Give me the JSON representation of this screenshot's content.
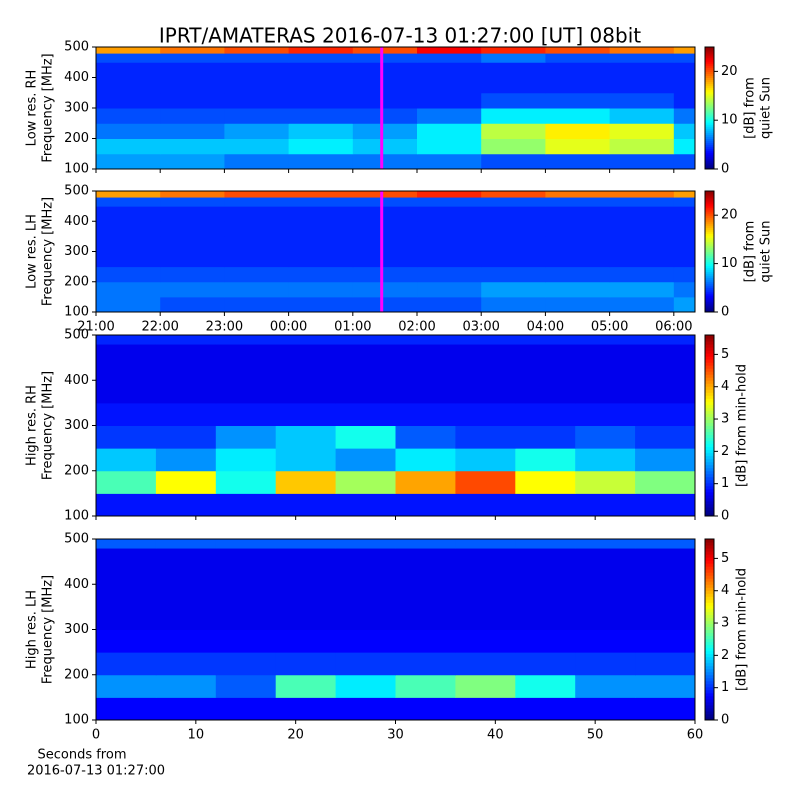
{
  "chart_data": [
    {
      "type": "heatmap",
      "title": "IPRT/AMATERAS 2016-07-13 01:27:00 [UT]   08bit",
      "ylabel": [
        "Low res. RH",
        "Frequency [MHz]"
      ],
      "xlim": [
        21,
        30.33
      ],
      "xticks": [
        21,
        22,
        23,
        24,
        25,
        26,
        27,
        28,
        29,
        30
      ],
      "ylim": [
        100,
        500
      ],
      "yticks": [
        100,
        200,
        300,
        400,
        500
      ],
      "x_edges": [
        21,
        22,
        23,
        24,
        25,
        26,
        27,
        28,
        29,
        30,
        30.33
      ],
      "y_edges": [
        100,
        150,
        200,
        250,
        300,
        350,
        400,
        450,
        480,
        500
      ],
      "colormap": "jet",
      "marker_x": 25.45,
      "marker_color": "#ff00ff",
      "z": [
        [
          7,
          7,
          6,
          6,
          6,
          6,
          5,
          5,
          5,
          5
        ],
        [
          8,
          8,
          8,
          9,
          8,
          9,
          13,
          15,
          14,
          9
        ],
        [
          6,
          6,
          7,
          8,
          7,
          9,
          14,
          16,
          15,
          8
        ],
        [
          5,
          5,
          5,
          5,
          5,
          6,
          9,
          9,
          8,
          6
        ],
        [
          4,
          4,
          4,
          4,
          4,
          4,
          5,
          5,
          5,
          4
        ],
        [
          4,
          4,
          4,
          4,
          4,
          4,
          4,
          4,
          4,
          4
        ],
        [
          4,
          4,
          4,
          4,
          4,
          4,
          4,
          4,
          4,
          4
        ],
        [
          5,
          5,
          5,
          5,
          5,
          5,
          6,
          5,
          5,
          5
        ],
        [
          18,
          19,
          20,
          21,
          20,
          22,
          21,
          20,
          19,
          18
        ]
      ],
      "colorbar": {
        "label": [
          "[dB] from",
          "quiet Sun"
        ],
        "clim": [
          0,
          25
        ],
        "ticks": [
          0,
          10,
          20
        ]
      }
    },
    {
      "type": "heatmap",
      "ylabel": [
        "Low res. LH",
        "Frequency [MHz]"
      ],
      "xlim": [
        21,
        30.33
      ],
      "xticks": [
        {
          "value": 21,
          "label": "21:00"
        },
        {
          "value": 22,
          "label": "22:00"
        },
        {
          "value": 23,
          "label": "23:00"
        },
        {
          "value": 24,
          "label": "00:00"
        },
        {
          "value": 25,
          "label": "01:00"
        },
        {
          "value": 26,
          "label": "02:00"
        },
        {
          "value": 27,
          "label": "03:00"
        },
        {
          "value": 28,
          "label": "04:00"
        },
        {
          "value": 29,
          "label": "05:00"
        },
        {
          "value": 30,
          "label": "06:00"
        }
      ],
      "ylim": [
        100,
        500
      ],
      "yticks": [
        100,
        200,
        300,
        400,
        500
      ],
      "x_edges": [
        21,
        22,
        23,
        24,
        25,
        26,
        27,
        28,
        29,
        30,
        30.33
      ],
      "y_edges": [
        100,
        150,
        200,
        250,
        300,
        350,
        400,
        450,
        480,
        500
      ],
      "colormap": "jet",
      "marker_x": 25.45,
      "marker_color": "#ff00ff",
      "z": [
        [
          6,
          5,
          5,
          5,
          5,
          5,
          6,
          6,
          6,
          7
        ],
        [
          6,
          6,
          6,
          6,
          6,
          6,
          7,
          7,
          7,
          6
        ],
        [
          5,
          5,
          5,
          5,
          5,
          5,
          5,
          5,
          5,
          5
        ],
        [
          4,
          4,
          4,
          4,
          4,
          4,
          4,
          4,
          4,
          4
        ],
        [
          4,
          4,
          4,
          4,
          4,
          4,
          4,
          4,
          4,
          4
        ],
        [
          4,
          4,
          4,
          4,
          4,
          4,
          4,
          4,
          4,
          4
        ],
        [
          4,
          4,
          4,
          4,
          4,
          4,
          4,
          4,
          4,
          4
        ],
        [
          5,
          5,
          5,
          5,
          5,
          5,
          5,
          5,
          5,
          5
        ],
        [
          18,
          19,
          20,
          20,
          20,
          21,
          20,
          19,
          19,
          18
        ]
      ],
      "colorbar": {
        "label": [
          "[dB] from",
          "quiet Sun"
        ],
        "clim": [
          0,
          25
        ],
        "ticks": [
          0,
          10,
          20
        ]
      }
    },
    {
      "type": "heatmap",
      "ylabel": [
        "High res. RH",
        "Frequency [MHz]"
      ],
      "xlim": [
        0,
        60
      ],
      "xticks": [
        0,
        10,
        20,
        30,
        40,
        50,
        60
      ],
      "ylim": [
        100,
        500
      ],
      "yticks": [
        100,
        200,
        300,
        400,
        500
      ],
      "x_edges": [
        0,
        6,
        12,
        18,
        24,
        30,
        36,
        42,
        48,
        54,
        60
      ],
      "y_edges": [
        100,
        150,
        200,
        250,
        300,
        350,
        400,
        450,
        480,
        500
      ],
      "colormap": "jet",
      "z": [
        [
          0.8,
          0.8,
          0.8,
          0.8,
          0.8,
          0.8,
          0.8,
          0.8,
          0.8,
          0.8
        ],
        [
          2.5,
          3.5,
          2.2,
          3.8,
          3.0,
          4.0,
          4.5,
          3.5,
          3.2,
          2.8
        ],
        [
          1.8,
          1.5,
          2.0,
          1.8,
          1.5,
          2.0,
          1.8,
          2.2,
          1.8,
          1.5
        ],
        [
          1.0,
          1.0,
          1.5,
          1.8,
          2.2,
          1.2,
          1.0,
          1.0,
          1.2,
          1.0
        ],
        [
          0.8,
          0.8,
          0.8,
          0.8,
          0.8,
          0.8,
          0.8,
          0.8,
          0.8,
          0.8
        ],
        [
          0.6,
          0.6,
          0.6,
          0.6,
          0.6,
          0.6,
          0.6,
          0.6,
          0.6,
          0.6
        ],
        [
          0.6,
          0.6,
          0.6,
          0.6,
          0.6,
          0.6,
          0.6,
          0.6,
          0.6,
          0.6
        ],
        [
          0.6,
          0.6,
          0.6,
          0.6,
          0.6,
          0.6,
          0.6,
          0.6,
          0.6,
          0.6
        ],
        [
          0.9,
          0.9,
          0.9,
          0.9,
          0.9,
          0.9,
          0.9,
          0.9,
          0.9,
          0.9
        ]
      ],
      "colorbar": {
        "label": [
          "[dB] from min-hold"
        ],
        "clim": [
          0,
          5.6
        ],
        "ticks": [
          0,
          1,
          2,
          3,
          4,
          5
        ]
      }
    },
    {
      "type": "heatmap",
      "ylabel": [
        "High res. LH",
        "Frequency [MHz]"
      ],
      "xlabel": [
        "Seconds from",
        "2016-07-13 01:27:00"
      ],
      "xlim": [
        0,
        60
      ],
      "xticks": [
        0,
        10,
        20,
        30,
        40,
        50,
        60
      ],
      "ylim": [
        100,
        500
      ],
      "yticks": [
        100,
        200,
        300,
        400,
        500
      ],
      "x_edges": [
        0,
        6,
        12,
        18,
        24,
        30,
        36,
        42,
        48,
        54,
        60
      ],
      "y_edges": [
        100,
        150,
        200,
        250,
        300,
        350,
        400,
        450,
        480,
        500
      ],
      "colormap": "jet",
      "z": [
        [
          0.7,
          0.7,
          0.7,
          0.7,
          0.7,
          0.7,
          0.7,
          0.7,
          0.7,
          0.7
        ],
        [
          1.5,
          1.5,
          1.2,
          2.5,
          2.0,
          2.5,
          2.8,
          2.2,
          1.5,
          1.5
        ],
        [
          1.0,
          1.0,
          1.0,
          1.0,
          1.0,
          1.0,
          1.0,
          1.0,
          1.0,
          1.0
        ],
        [
          0.7,
          0.7,
          0.7,
          0.7,
          0.7,
          0.7,
          0.7,
          0.7,
          0.7,
          0.7
        ],
        [
          0.6,
          0.6,
          0.6,
          0.6,
          0.6,
          0.6,
          0.6,
          0.6,
          0.6,
          0.6
        ],
        [
          0.6,
          0.6,
          0.6,
          0.6,
          0.6,
          0.6,
          0.6,
          0.6,
          0.6,
          0.6
        ],
        [
          0.6,
          0.6,
          0.6,
          0.6,
          0.6,
          0.6,
          0.6,
          0.6,
          0.6,
          0.6
        ],
        [
          0.6,
          0.6,
          0.6,
          0.6,
          0.6,
          0.6,
          0.6,
          0.6,
          0.6,
          0.6
        ],
        [
          1.2,
          1.2,
          1.2,
          1.2,
          1.2,
          1.2,
          1.2,
          1.2,
          1.2,
          1.2
        ]
      ],
      "colorbar": {
        "label": [
          "[dB] from min-hold"
        ],
        "clim": [
          0,
          5.6
        ],
        "ticks": [
          0,
          1,
          2,
          3,
          4,
          5
        ]
      }
    }
  ]
}
